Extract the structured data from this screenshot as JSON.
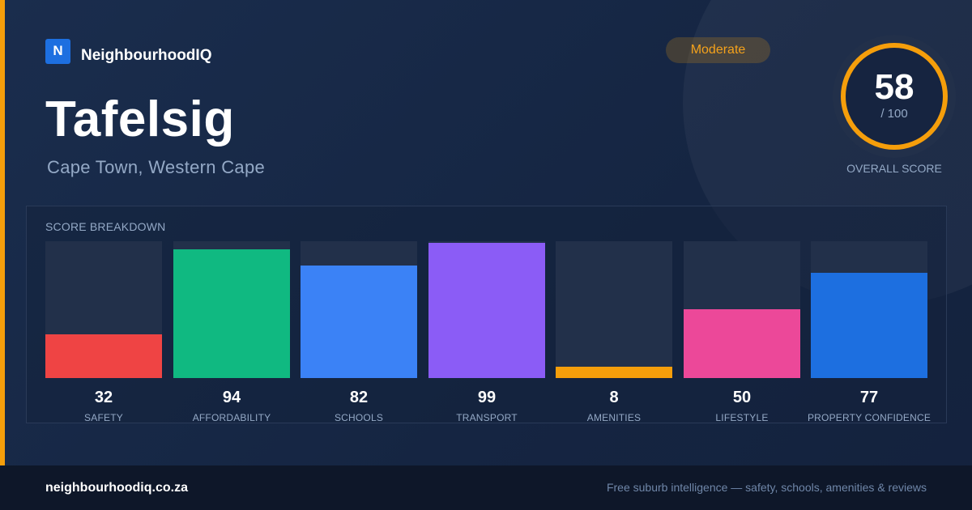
{
  "brand": {
    "logo_letter": "N",
    "name": "NeighbourhoodIQ",
    "accent_color": "#f59e0b",
    "logo_color": "#1d6fe0"
  },
  "suburb": {
    "name": "Tafelsig",
    "location": "Cape Town, Western Cape"
  },
  "badge": {
    "label": "Moderate",
    "color": "#f5a21b"
  },
  "overall": {
    "score": "58",
    "denominator": "/ 100",
    "label": "OVERALL SCORE",
    "fraction": 0.58,
    "ring_color": "#f59e0b"
  },
  "breakdown": {
    "title": "SCORE BREAKDOWN",
    "items": [
      {
        "label": "SAFETY",
        "value": "32",
        "color": "#ef4444",
        "level": 0.32
      },
      {
        "label": "AFFORDABILITY",
        "value": "94",
        "color": "#10b981",
        "level": 0.94
      },
      {
        "label": "SCHOOLS",
        "value": "82",
        "color": "#3b82f6",
        "level": 0.82
      },
      {
        "label": "TRANSPORT",
        "value": "99",
        "color": "#8b5cf6",
        "level": 0.99
      },
      {
        "label": "AMENITIES",
        "value": "8",
        "color": "#f59e0b",
        "level": 0.08
      },
      {
        "label": "LIFESTYLE",
        "value": "50",
        "color": "#ec4899",
        "level": 0.5
      },
      {
        "label": "PROPERTY CONFIDENCE",
        "value": "77",
        "color": "#1d6fe0",
        "level": 0.77
      }
    ]
  },
  "footer": {
    "domain": "neighbourhoodiq.co.za",
    "tagline": "Free suburb intelligence — safety, schools, amenities & reviews"
  }
}
